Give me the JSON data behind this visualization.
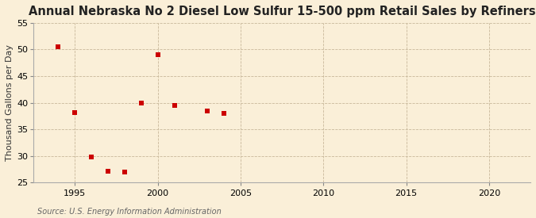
{
  "title": "Annual Nebraska No 2 Diesel Low Sulfur 15-500 ppm Retail Sales by Refiners",
  "ylabel": "Thousand Gallons per Day",
  "source": "Source: U.S. Energy Information Administration",
  "background_color": "#faefd8",
  "x_data": [
    1994,
    1995,
    1996,
    1997,
    1998,
    1999,
    2000,
    2001,
    2003,
    2004
  ],
  "y_data": [
    50.5,
    38.2,
    29.8,
    27.1,
    27.0,
    40.0,
    49.0,
    39.5,
    38.5,
    38.0
  ],
  "marker_color": "#cc0000",
  "marker": "s",
  "marker_size": 4,
  "xlim": [
    1992.5,
    2022.5
  ],
  "ylim": [
    25,
    55
  ],
  "xticks": [
    1995,
    2000,
    2005,
    2010,
    2015,
    2020
  ],
  "yticks": [
    25,
    30,
    35,
    40,
    45,
    50,
    55
  ],
  "title_fontsize": 10.5,
  "ylabel_fontsize": 8,
  "tick_fontsize": 8,
  "source_fontsize": 7,
  "grid_color": "#c8b89a",
  "grid_linestyle": "--",
  "grid_linewidth": 0.6
}
